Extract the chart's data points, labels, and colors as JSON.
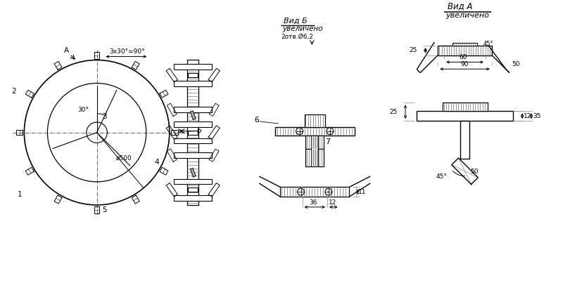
{
  "bg_color": "#ffffff",
  "lc": "#000000",
  "fig_w": 8.1,
  "fig_h": 4.03,
  "dpi": 100,
  "ann": {
    "view_a_title": "Вид А",
    "view_a_sub": "увеличено",
    "view_b_title": "Вид Б",
    "view_b_sub": "увеличено",
    "view_b_note": "2отв.Ø6,2",
    "dim_3x30": "3х30°=90°",
    "dim_30deg": "30°",
    "dim_d500": "ø500",
    "dim_25_top": "25",
    "dim_25_mid": "25",
    "dim_50_top": "50",
    "dim_60": "60",
    "dim_90": "90",
    "dim_45_top": "45°",
    "dim_12": "12",
    "dim_35": "35",
    "dim_50_bot": "50",
    "dim_45_bot": "45°",
    "dim_36": "36",
    "dim_12b": "12",
    "dim_11": "11",
    "lA": "А",
    "lB": "Б",
    "l1": "1",
    "l2": "2",
    "l3": "3",
    "l4": "4",
    "l5": "5",
    "l6": "6",
    "l7": "7"
  }
}
